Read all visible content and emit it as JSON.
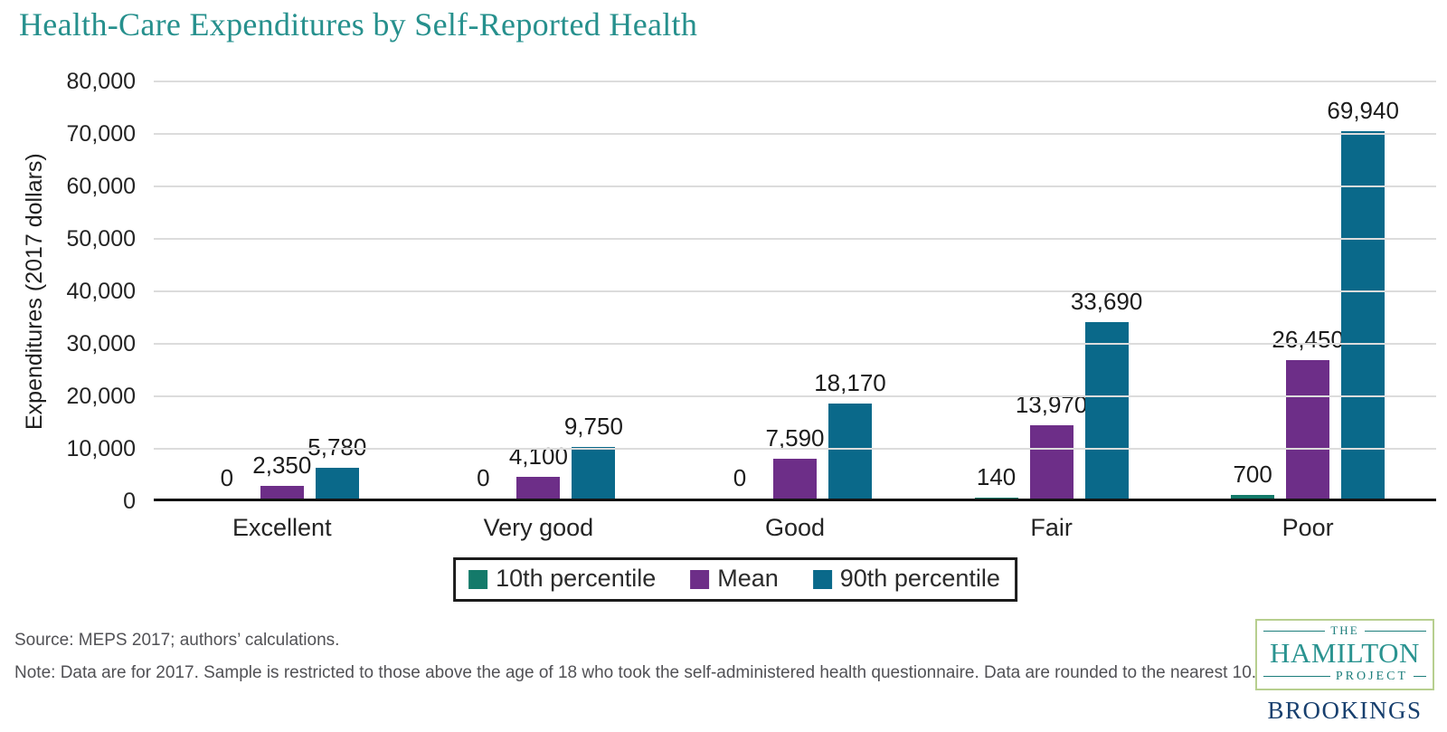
{
  "title": "Health-Care Expenditures by Self-Reported Health",
  "chart_data": {
    "type": "bar",
    "title": "Health-Care Expenditures by Self-Reported Health",
    "categories": [
      "Excellent",
      "Very good",
      "Good",
      "Fair",
      "Poor"
    ],
    "series": [
      {
        "name": "10th percentile",
        "color": "#147a6a",
        "values": [
          0,
          0,
          0,
          140,
          700
        ]
      },
      {
        "name": "Mean",
        "color": "#6d2e88",
        "values": [
          2350,
          4100,
          7590,
          13970,
          26450
        ]
      },
      {
        "name": "90th percentile",
        "color": "#0a698a",
        "values": [
          5780,
          9750,
          18170,
          33690,
          69940
        ]
      }
    ],
    "xlabel": "",
    "ylabel": "Expenditures (2017 dollars)",
    "ylim": [
      0,
      80000
    ],
    "ytick_step": 10000,
    "grid": true,
    "legend_position": "bottom",
    "value_labels_shown": true
  },
  "footer": {
    "source": "Source: MEPS 2017; authors’ calculations.",
    "note": "Note: Data are for 2017. Sample is restricted to those above the age of 18 who took the self-administered health questionnaire. Data are rounded to the nearest 10."
  },
  "logo": {
    "the": "THE",
    "hamilton": "HAMILTON",
    "project": "PROJECT",
    "brookings": "BROOKINGS"
  },
  "colors": {
    "title_teal": "#26908d",
    "series_10th": "#147a6a",
    "series_mean": "#6d2e88",
    "series_90th": "#0a698a",
    "gridline": "#dcdcdc",
    "axis": "#121212",
    "footer_gray": "#515155",
    "hamilton_teal": "#2a9390",
    "hamilton_border_green": "#b7cf8f",
    "brookings_navy": "#173f6e"
  }
}
